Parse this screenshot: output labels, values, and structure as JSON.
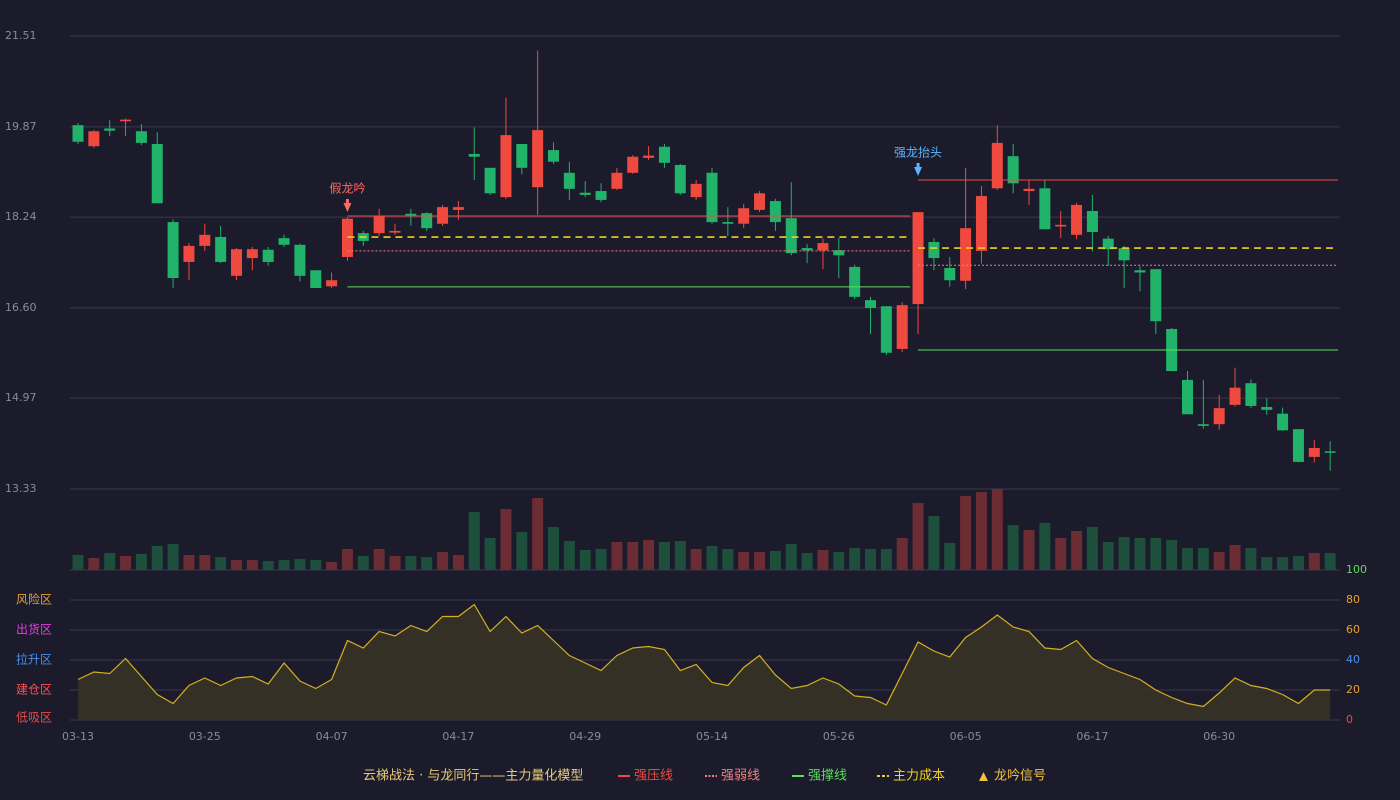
{
  "chart_data": [
    {
      "type": "candlestick",
      "open": [
        19.9,
        19.52,
        19.84,
        19.97,
        19.79,
        19.56,
        18.15,
        17.43,
        17.72,
        17.88,
        17.18,
        17.5,
        17.65,
        17.86,
        17.74,
        17.28,
        16.99,
        17.52,
        17.95,
        17.95,
        17.96,
        18.3,
        18.31,
        18.12,
        18.37,
        19.38,
        19.13,
        18.6,
        19.56,
        18.78,
        19.45,
        19.04,
        18.68,
        18.71,
        18.75,
        19.04,
        19.31,
        19.51,
        19.18,
        18.6,
        19.04,
        18.15,
        18.12,
        18.37,
        18.53,
        18.22,
        17.68,
        17.64,
        17.64,
        17.34,
        16.74,
        16.63,
        15.86,
        16.67,
        17.79,
        17.32,
        17.09,
        17.63,
        18.76,
        19.34,
        18.71,
        18.76,
        18.07,
        17.92,
        18.35,
        17.85,
        17.68,
        17.28,
        17.3,
        16.22,
        15.3,
        14.5,
        14.5,
        14.85,
        15.24,
        14.81,
        14.69,
        14.41,
        13.91,
        14.01
      ],
      "high": [
        19.94,
        19.81,
        19.99,
        20.02,
        19.92,
        19.77,
        18.2,
        17.77,
        18.12,
        18.08,
        17.68,
        17.7,
        17.7,
        17.92,
        17.76,
        17.28,
        17.24,
        18.24,
        17.99,
        18.39,
        18.12,
        18.39,
        18.33,
        18.46,
        18.53,
        19.86,
        19.13,
        20.4,
        19.56,
        21.25,
        19.59,
        19.24,
        18.89,
        18.85,
        19.13,
        19.36,
        19.52,
        19.56,
        19.2,
        18.91,
        19.13,
        18.42,
        18.48,
        18.71,
        18.57,
        18.87,
        17.75,
        17.85,
        17.86,
        17.38,
        16.8,
        16.63,
        16.7,
        18.33,
        17.86,
        17.52,
        19.13,
        18.8,
        19.9,
        19.56,
        18.91,
        18.91,
        18.35,
        18.5,
        18.64,
        17.9,
        17.72,
        17.35,
        17.3,
        16.24,
        15.46,
        15.3,
        15.03,
        15.52,
        15.31,
        14.97,
        14.8,
        14.41,
        14.21,
        14.19
      ],
      "low": [
        19.56,
        19.49,
        19.7,
        19.7,
        19.54,
        18.49,
        16.96,
        17.1,
        17.63,
        17.41,
        17.1,
        17.28,
        17.36,
        17.7,
        17.08,
        16.96,
        16.96,
        17.45,
        17.72,
        17.9,
        17.92,
        18.08,
        17.99,
        18.08,
        18.19,
        18.91,
        18.64,
        18.57,
        19.01,
        18.28,
        19.2,
        18.55,
        18.6,
        18.51,
        18.73,
        19.02,
        19.27,
        19.13,
        18.64,
        18.55,
        18.12,
        17.9,
        18.04,
        18.33,
        17.99,
        17.55,
        17.41,
        17.3,
        17.14,
        16.76,
        16.13,
        15.75,
        15.8,
        16.13,
        17.28,
        16.98,
        16.94,
        17.4,
        18.73,
        18.67,
        18.46,
        18.02,
        17.86,
        17.84,
        17.62,
        17.36,
        16.96,
        16.9,
        16.13,
        15.46,
        14.68,
        14.42,
        14.4,
        14.82,
        14.79,
        14.67,
        14.38,
        13.81,
        13.81,
        13.66
      ],
      "close": [
        19.6,
        19.79,
        19.8,
        20.0,
        19.58,
        18.49,
        17.14,
        17.72,
        17.92,
        17.43,
        17.66,
        17.66,
        17.43,
        17.74,
        17.18,
        16.96,
        17.1,
        18.21,
        17.81,
        18.26,
        17.99,
        18.27,
        18.04,
        18.42,
        18.42,
        19.33,
        18.67,
        19.72,
        19.13,
        19.81,
        19.24,
        18.75,
        18.64,
        18.55,
        19.04,
        19.33,
        19.35,
        19.22,
        18.67,
        18.84,
        18.15,
        18.12,
        18.4,
        18.67,
        18.15,
        17.59,
        17.64,
        17.77,
        17.55,
        16.8,
        16.6,
        15.79,
        16.65,
        18.33,
        17.5,
        17.1,
        18.04,
        18.62,
        19.58,
        18.85,
        18.75,
        18.02,
        18.1,
        18.46,
        17.97,
        17.66,
        17.46,
        17.24,
        16.36,
        15.46,
        14.68,
        14.47,
        14.79,
        15.16,
        14.83,
        14.76,
        14.39,
        13.82,
        14.07,
        13.99
      ],
      "up_color": "#f04a40",
      "down_color": "#22b36a",
      "ylim": [
        13.33,
        21.51
      ],
      "yticks": [
        {
          "value": 13.33,
          "label": "13.33"
        },
        {
          "value": 14.97,
          "label": "14.97"
        },
        {
          "value": 16.6,
          "label": "16.60"
        },
        {
          "value": 18.24,
          "label": "18.24"
        },
        {
          "value": 19.87,
          "label": "19.87"
        },
        {
          "value": 21.51,
          "label": "21.51"
        }
      ],
      "grid": true,
      "levels": [
        {
          "name": "强压线",
          "color": "#f04a40",
          "style": "solid",
          "segments": [
            {
              "from": 17,
              "to": 52,
              "value": 18.26
            },
            {
              "from": 53,
              "to": 79,
              "value": 18.91
            }
          ]
        },
        {
          "name": "强弱线",
          "color": "#f08080",
          "style": "dotted",
          "segments": [
            {
              "from": 17,
              "to": 52,
              "value": 17.63
            },
            {
              "from": 53,
              "to": 79,
              "value": 17.37
            }
          ]
        },
        {
          "name": "强撑线",
          "color": "#5cdd5c",
          "style": "solid",
          "segments": [
            {
              "from": 17,
              "to": 52,
              "value": 16.98
            },
            {
              "from": 53,
              "to": 79,
              "value": 15.84
            }
          ]
        },
        {
          "name": "主力成本",
          "color": "#f0d020",
          "style": "dashed",
          "segments": [
            {
              "from": 17,
              "to": 52,
              "value": 17.88
            },
            {
              "from": 53,
              "to": 79,
              "value": 17.68
            }
          ]
        }
      ],
      "annotations": [
        {
          "text": "假龙吟",
          "index": 17,
          "color": "#ff6a60"
        },
        {
          "text": "强龙抬头",
          "index": 53,
          "color": "#5ab4ff"
        }
      ],
      "legend_title": "云梯战法 · 与龙同行——主力量化模型",
      "signal": {
        "name": "龙吟信号",
        "color": "#f0c040"
      }
    },
    {
      "type": "bar",
      "values": [
        15,
        12,
        17,
        14,
        16,
        24,
        26,
        15,
        15,
        13,
        10,
        10,
        9,
        10,
        11,
        10,
        8,
        21,
        14,
        21,
        14,
        14,
        13,
        18,
        15,
        58,
        32,
        61,
        38,
        72,
        43,
        29,
        20,
        21,
        28,
        28,
        30,
        28,
        29,
        21,
        24,
        21,
        18,
        18,
        19,
        26,
        17,
        20,
        18,
        22,
        21,
        21,
        32,
        67,
        54,
        27,
        74,
        78,
        81,
        45,
        40,
        47,
        32,
        39,
        43,
        28,
        33,
        32,
        32,
        30,
        22,
        22,
        18,
        25,
        22,
        13,
        13,
        14,
        17,
        17
      ],
      "up_color": "#6b2c34",
      "down_color": "#1d4f3c"
    },
    {
      "type": "line",
      "categories": [
        "03-13",
        null,
        null,
        null,
        null,
        null,
        null,
        null,
        "03-25",
        null,
        null,
        null,
        null,
        null,
        null,
        null,
        "04-07",
        null,
        null,
        null,
        null,
        null,
        null,
        null,
        "04-17",
        null,
        null,
        null,
        null,
        null,
        null,
        null,
        "04-29",
        null,
        null,
        null,
        null,
        null,
        null,
        null,
        "05-14",
        null,
        null,
        null,
        null,
        null,
        null,
        null,
        "05-26",
        null,
        null,
        null,
        null,
        null,
        null,
        null,
        "06-05",
        null,
        null,
        null,
        null,
        null,
        null,
        null,
        "06-17",
        null,
        null,
        null,
        null,
        null,
        null,
        null,
        "06-30",
        null,
        null,
        null,
        null,
        null,
        null,
        null
      ],
      "values": [
        27,
        32,
        31,
        41,
        29,
        17,
        11,
        23,
        28,
        23,
        28,
        29,
        24,
        38,
        26,
        21,
        27,
        53,
        48,
        59,
        56,
        63,
        59,
        69,
        69,
        77,
        59,
        69,
        58,
        63,
        53,
        43,
        38,
        33,
        43,
        48,
        49,
        47,
        33,
        37,
        25,
        23,
        35,
        43,
        30,
        21,
        23,
        28,
        24,
        16,
        15,
        10,
        31,
        52,
        46,
        42,
        55,
        62,
        70,
        62,
        59,
        48,
        47,
        53,
        41,
        35,
        31,
        27,
        20,
        15,
        11,
        9,
        18,
        28,
        23,
        21,
        17,
        11,
        20,
        20
      ],
      "color": "#d4b020",
      "ylim": [
        0,
        100
      ],
      "yticks": [
        0,
        20,
        40,
        60,
        80,
        100
      ],
      "ytick_colors": [
        "#e84a4a",
        "#e8a030",
        "#4a8ff0",
        "#e8a030",
        "#e8a030",
        "#5cdd5c"
      ],
      "zones": [
        {
          "value": 80,
          "label": "风险区",
          "color": "#e8a030"
        },
        {
          "value": 60,
          "label": "出货区",
          "color": "#e040e0"
        },
        {
          "value": 40,
          "label": "拉升区",
          "color": "#4a8ff0"
        },
        {
          "value": 20,
          "label": "建仓区",
          "color": "#ff5050"
        },
        {
          "value": 0,
          "label": "低吸区",
          "color": "#e84a4a"
        }
      ]
    }
  ]
}
